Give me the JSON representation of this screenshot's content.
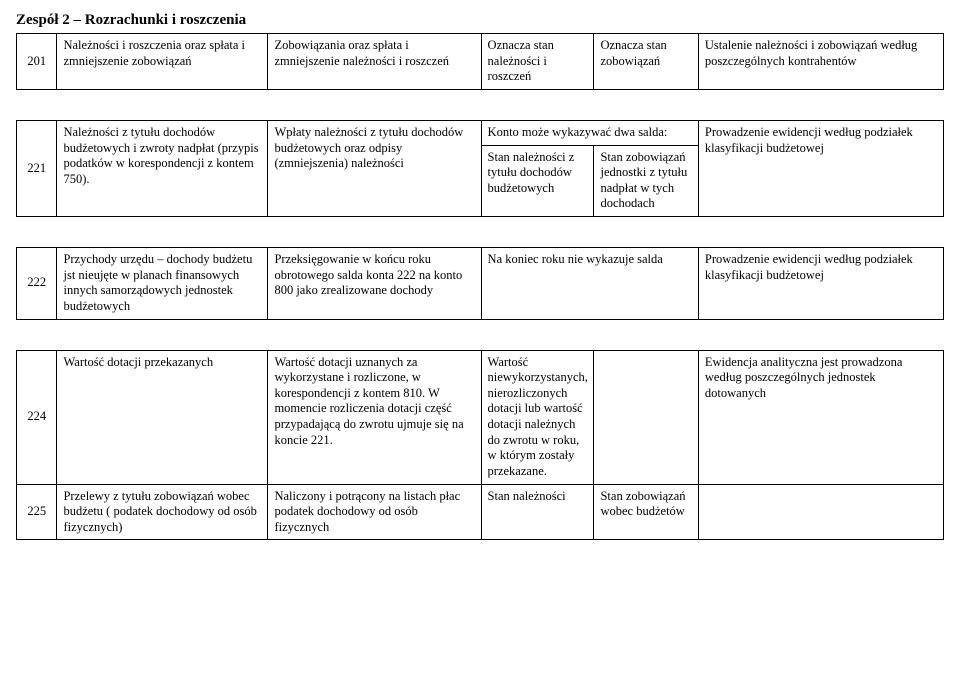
{
  "title": "Zespół 2 – Rozrachunki i roszczenia",
  "rows": {
    "r201": {
      "num": "201",
      "a": "Należności i roszczenia oraz spłata i zmniejszenie zobowiązań",
      "b": "Zobowiązania oraz spłata i zmniejszenie należności i roszczeń",
      "c": "Oznacza stan należności i roszczeń",
      "d": "Oznacza stan zobowiązań",
      "e": "Ustalenie należności i zobowiązań według poszczególnych kontrahentów"
    },
    "r221": {
      "num": "221",
      "a": "Należności z tytułu dochodów budżetowych i zwroty nadpłat (przypis podatków w korespondencji z kontem 750).",
      "b": "Wpłaty należności z tytułu dochodów budżetowych oraz odpisy (zmniejszenia) należności",
      "c1": "Konto może wykazywać dwa salda:",
      "c2": "Stan należności z tytułu dochodów budżetowych",
      "d2": "Stan zobowiązań jednostki z tytułu nadpłat w tych dochodach",
      "e": "Prowadzenie ewidencji według podziałek klasyfikacji budżetowej"
    },
    "r222": {
      "num": "222",
      "a": "Przychody urzędu – dochody budżetu jst nieujęte w planach finansowych innych samorządowych jednostek budżetowych",
      "b": "Przeksięgowanie w końcu roku obrotowego salda konta 222 na konto 800 jako zrealizowane dochody",
      "c": "Na koniec roku nie wykazuje salda",
      "e": "Prowadzenie ewidencji według podziałek klasyfikacji budżetowej"
    },
    "r224": {
      "num": "224",
      "a": "Wartość dotacji przekazanych",
      "b": "Wartość dotacji uznanych za wykorzystane i rozliczone, w korespondencji z kontem 810. W momencie rozliczenia dotacji część przypadającą do zwrotu ujmuje się na koncie 221.",
      "c": "Wartość niewykorzystanych, nierozliczonych dotacji lub wartość dotacji należnych do zwrotu w roku, w którym zostały przekazane.",
      "d": "",
      "e": "Ewidencja analityczna jest prowadzona według poszczególnych jednostek dotowanych"
    },
    "r225": {
      "num": "225",
      "a": "Przelewy z tytułu zobowiązań wobec budżetu ( podatek dochodowy od osób fizycznych)",
      "b": "Naliczony i potrącony na listach płac podatek dochodowy od osób fizycznych",
      "c": "Stan należności",
      "d": "Stan zobowiązań wobec budżetów",
      "e": ""
    }
  }
}
